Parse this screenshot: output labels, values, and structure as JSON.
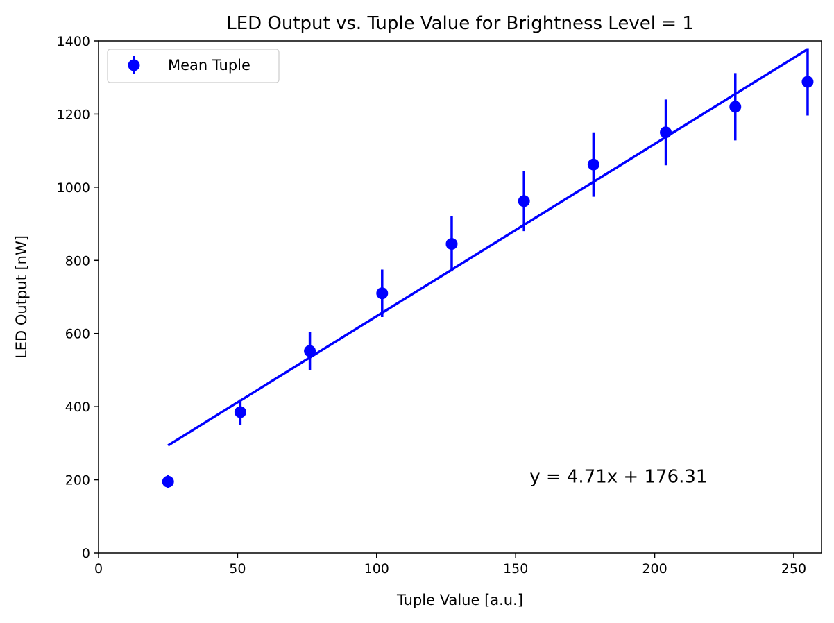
{
  "chart_data": {
    "type": "scatter",
    "title": "LED Output vs. Tuple Value for Brightness Level = 1",
    "xlabel": "Tuple Value [a.u.]",
    "ylabel": "LED Output [nW]",
    "xlim": [
      0,
      260
    ],
    "ylim": [
      0,
      1400
    ],
    "xticks": [
      0,
      50,
      100,
      150,
      200,
      250
    ],
    "yticks": [
      0,
      200,
      400,
      600,
      800,
      1000,
      1200,
      1400
    ],
    "grid": false,
    "legend_position": "top-left",
    "color": "#0000ff",
    "series": [
      {
        "name": "Mean Tuple",
        "kind": "errorbar",
        "x": [
          25,
          51,
          76,
          102,
          127,
          153,
          178,
          204,
          229,
          255
        ],
        "y": [
          195,
          385,
          552,
          710,
          845,
          962,
          1062,
          1150,
          1220,
          1288
        ],
        "yerr": [
          18,
          35,
          52,
          65,
          75,
          82,
          88,
          90,
          92,
          92
        ]
      }
    ],
    "fit": {
      "slope": 4.71,
      "intercept": 176.31,
      "x_range": [
        25,
        255
      ]
    },
    "annotation": {
      "text": "y = 4.71x + 176.31",
      "x": 155,
      "y": 200
    }
  }
}
